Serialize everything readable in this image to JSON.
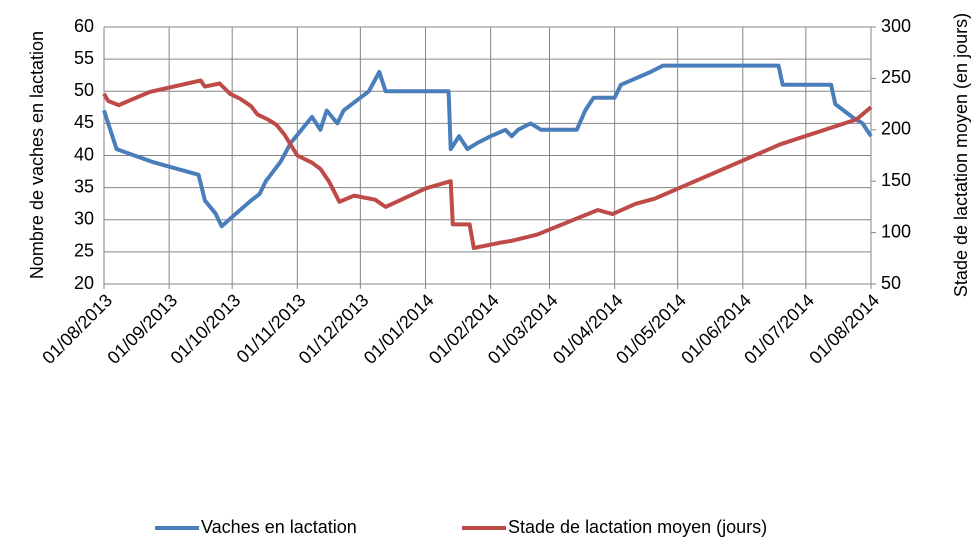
{
  "chart_data": {
    "type": "line",
    "y_label": "Nombre de vaches en lactation",
    "y2_label": "Stade de lactation moyen (en jours)",
    "xlim": [
      "2013-08-01",
      "2014-08-01"
    ],
    "xticks": [
      {
        "value": "2013-08-01",
        "label": "01/08/2013"
      },
      {
        "value": "2013-09-01",
        "label": "01/09/2013"
      },
      {
        "value": "2013-10-01",
        "label": "01/10/2013"
      },
      {
        "value": "2013-11-01",
        "label": "01/11/2013"
      },
      {
        "value": "2013-12-01",
        "label": "01/12/2013"
      },
      {
        "value": "2014-01-01",
        "label": "01/01/2014"
      },
      {
        "value": "2014-02-01",
        "label": "01/02/2014"
      },
      {
        "value": "2014-03-01",
        "label": "01/03/2014"
      },
      {
        "value": "2014-04-01",
        "label": "01/04/2014"
      },
      {
        "value": "2014-05-01",
        "label": "01/05/2014"
      },
      {
        "value": "2014-06-01",
        "label": "01/06/2014"
      },
      {
        "value": "2014-07-01",
        "label": "01/07/2014"
      },
      {
        "value": "2014-08-01",
        "label": "01/08/2014"
      }
    ],
    "ylim": [
      20,
      60
    ],
    "yticks": [
      20,
      25,
      30,
      35,
      40,
      45,
      50,
      55,
      60
    ],
    "y2lim": [
      50,
      300
    ],
    "y2ticks": [
      50,
      100,
      150,
      200,
      250,
      300
    ],
    "grid": true,
    "legend": "bottom",
    "series": [
      {
        "name": "Vaches en lactation",
        "color": "#4a7ebb",
        "axis": "y",
        "x": [
          "2013-08-01",
          "2013-08-03",
          "2013-08-05",
          "2013-08-07",
          "2013-08-24",
          "2013-09-15",
          "2013-09-18",
          "2013-09-23",
          "2013-09-26",
          "2013-10-03",
          "2013-10-10",
          "2013-10-14",
          "2013-10-17",
          "2013-10-24",
          "2013-10-29",
          "2013-11-03",
          "2013-11-08",
          "2013-11-12",
          "2013-11-15",
          "2013-11-20",
          "2013-11-23",
          "2013-12-01",
          "2013-12-05",
          "2013-12-10",
          "2013-12-13",
          "2014-01-07",
          "2014-01-12",
          "2014-01-13",
          "2014-01-17",
          "2014-01-21",
          "2014-01-26",
          "2014-02-01",
          "2014-02-08",
          "2014-02-11",
          "2014-02-14",
          "2014-02-20",
          "2014-02-25",
          "2014-03-14",
          "2014-03-18",
          "2014-03-22",
          "2014-04-01",
          "2014-04-04",
          "2014-04-11",
          "2014-04-18",
          "2014-04-24",
          "2014-06-18",
          "2014-06-20",
          "2014-07-13",
          "2014-07-15",
          "2014-07-23",
          "2014-07-28",
          "2014-08-01"
        ],
        "values": [
          47,
          45,
          43,
          41,
          39,
          37,
          33,
          31,
          29,
          31,
          33,
          34,
          36,
          39,
          42,
          44,
          46,
          44,
          47,
          45,
          47,
          49,
          50,
          53,
          50,
          50,
          50,
          41,
          43,
          41,
          42,
          43,
          44,
          43,
          44,
          45,
          44,
          44,
          47,
          49,
          49,
          51,
          52,
          53,
          54,
          54,
          51,
          51,
          48,
          46,
          45,
          43
        ]
      },
      {
        "name": "Stade de lactation moyen (jours)",
        "color": "#be4b48",
        "axis": "y2",
        "x": [
          "2013-08-01",
          "2013-08-03",
          "2013-08-08",
          "2013-08-23",
          "2013-09-16",
          "2013-09-18",
          "2013-09-25",
          "2013-09-30",
          "2013-10-05",
          "2013-10-10",
          "2013-10-13",
          "2013-10-18",
          "2013-10-22",
          "2013-10-26",
          "2013-11-01",
          "2013-11-08",
          "2013-11-12",
          "2013-11-16",
          "2013-11-21",
          "2013-11-28",
          "2013-12-08",
          "2013-12-13",
          "2014-01-01",
          "2014-01-13",
          "2014-01-14",
          "2014-01-22",
          "2014-01-24",
          "2014-02-05",
          "2014-02-11",
          "2014-02-23",
          "2014-03-24",
          "2014-03-31",
          "2014-04-11",
          "2014-04-20",
          "2014-06-19",
          "2014-07-25",
          "2014-08-01"
        ],
        "values": [
          235,
          228,
          224,
          237,
          248,
          242,
          245,
          235,
          230,
          223,
          215,
          210,
          205,
          195,
          175,
          168,
          162,
          150,
          130,
          136,
          132,
          125,
          143,
          150,
          108,
          108,
          85,
          90,
          92,
          98,
          122,
          118,
          128,
          133,
          186,
          210,
          222
        ]
      }
    ]
  }
}
